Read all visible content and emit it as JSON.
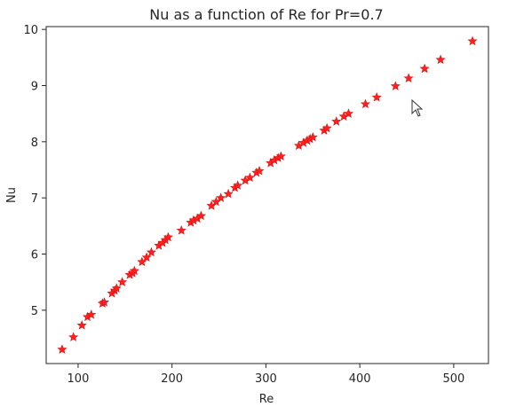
{
  "chart_data": {
    "type": "scatter",
    "title": "Nu as a function of Re for Pr=0.7",
    "xlabel": "Re",
    "ylabel": "Nu",
    "xlim": [
      66,
      537
    ],
    "ylim": [
      4.05,
      10.05
    ],
    "xticks": [
      100,
      200,
      300,
      400,
      500
    ],
    "yticks": [
      5,
      6,
      7,
      8,
      9,
      10
    ],
    "marker": "star",
    "marker_color": "#ff2020",
    "grid": false,
    "series": [
      {
        "x": [
          83,
          95,
          104,
          110,
          114,
          126,
          128,
          136,
          139,
          141,
          147,
          155,
          158,
          160,
          168,
          173,
          178,
          186,
          190,
          193,
          196,
          210,
          220,
          223,
          227,
          231,
          242,
          247,
          252,
          260,
          267,
          270,
          278,
          283,
          290,
          293,
          305,
          309,
          313,
          316,
          335,
          340,
          344,
          347,
          350,
          362,
          365,
          375,
          383,
          388,
          406,
          418,
          438,
          452,
          469,
          486,
          520
        ],
        "y": [
          4.3,
          4.52,
          4.73,
          4.88,
          4.92,
          5.12,
          5.14,
          5.3,
          5.35,
          5.39,
          5.5,
          5.63,
          5.66,
          5.7,
          5.86,
          5.94,
          6.03,
          6.15,
          6.2,
          6.25,
          6.3,
          6.42,
          6.56,
          6.6,
          6.63,
          6.68,
          6.86,
          6.93,
          7.0,
          7.07,
          7.18,
          7.22,
          7.31,
          7.36,
          7.45,
          7.48,
          7.62,
          7.67,
          7.71,
          7.74,
          7.93,
          7.98,
          8.02,
          8.05,
          8.08,
          8.2,
          8.24,
          8.36,
          8.45,
          8.5,
          8.67,
          8.79,
          8.99,
          9.13,
          9.3,
          9.46,
          9.79
        ]
      }
    ]
  }
}
